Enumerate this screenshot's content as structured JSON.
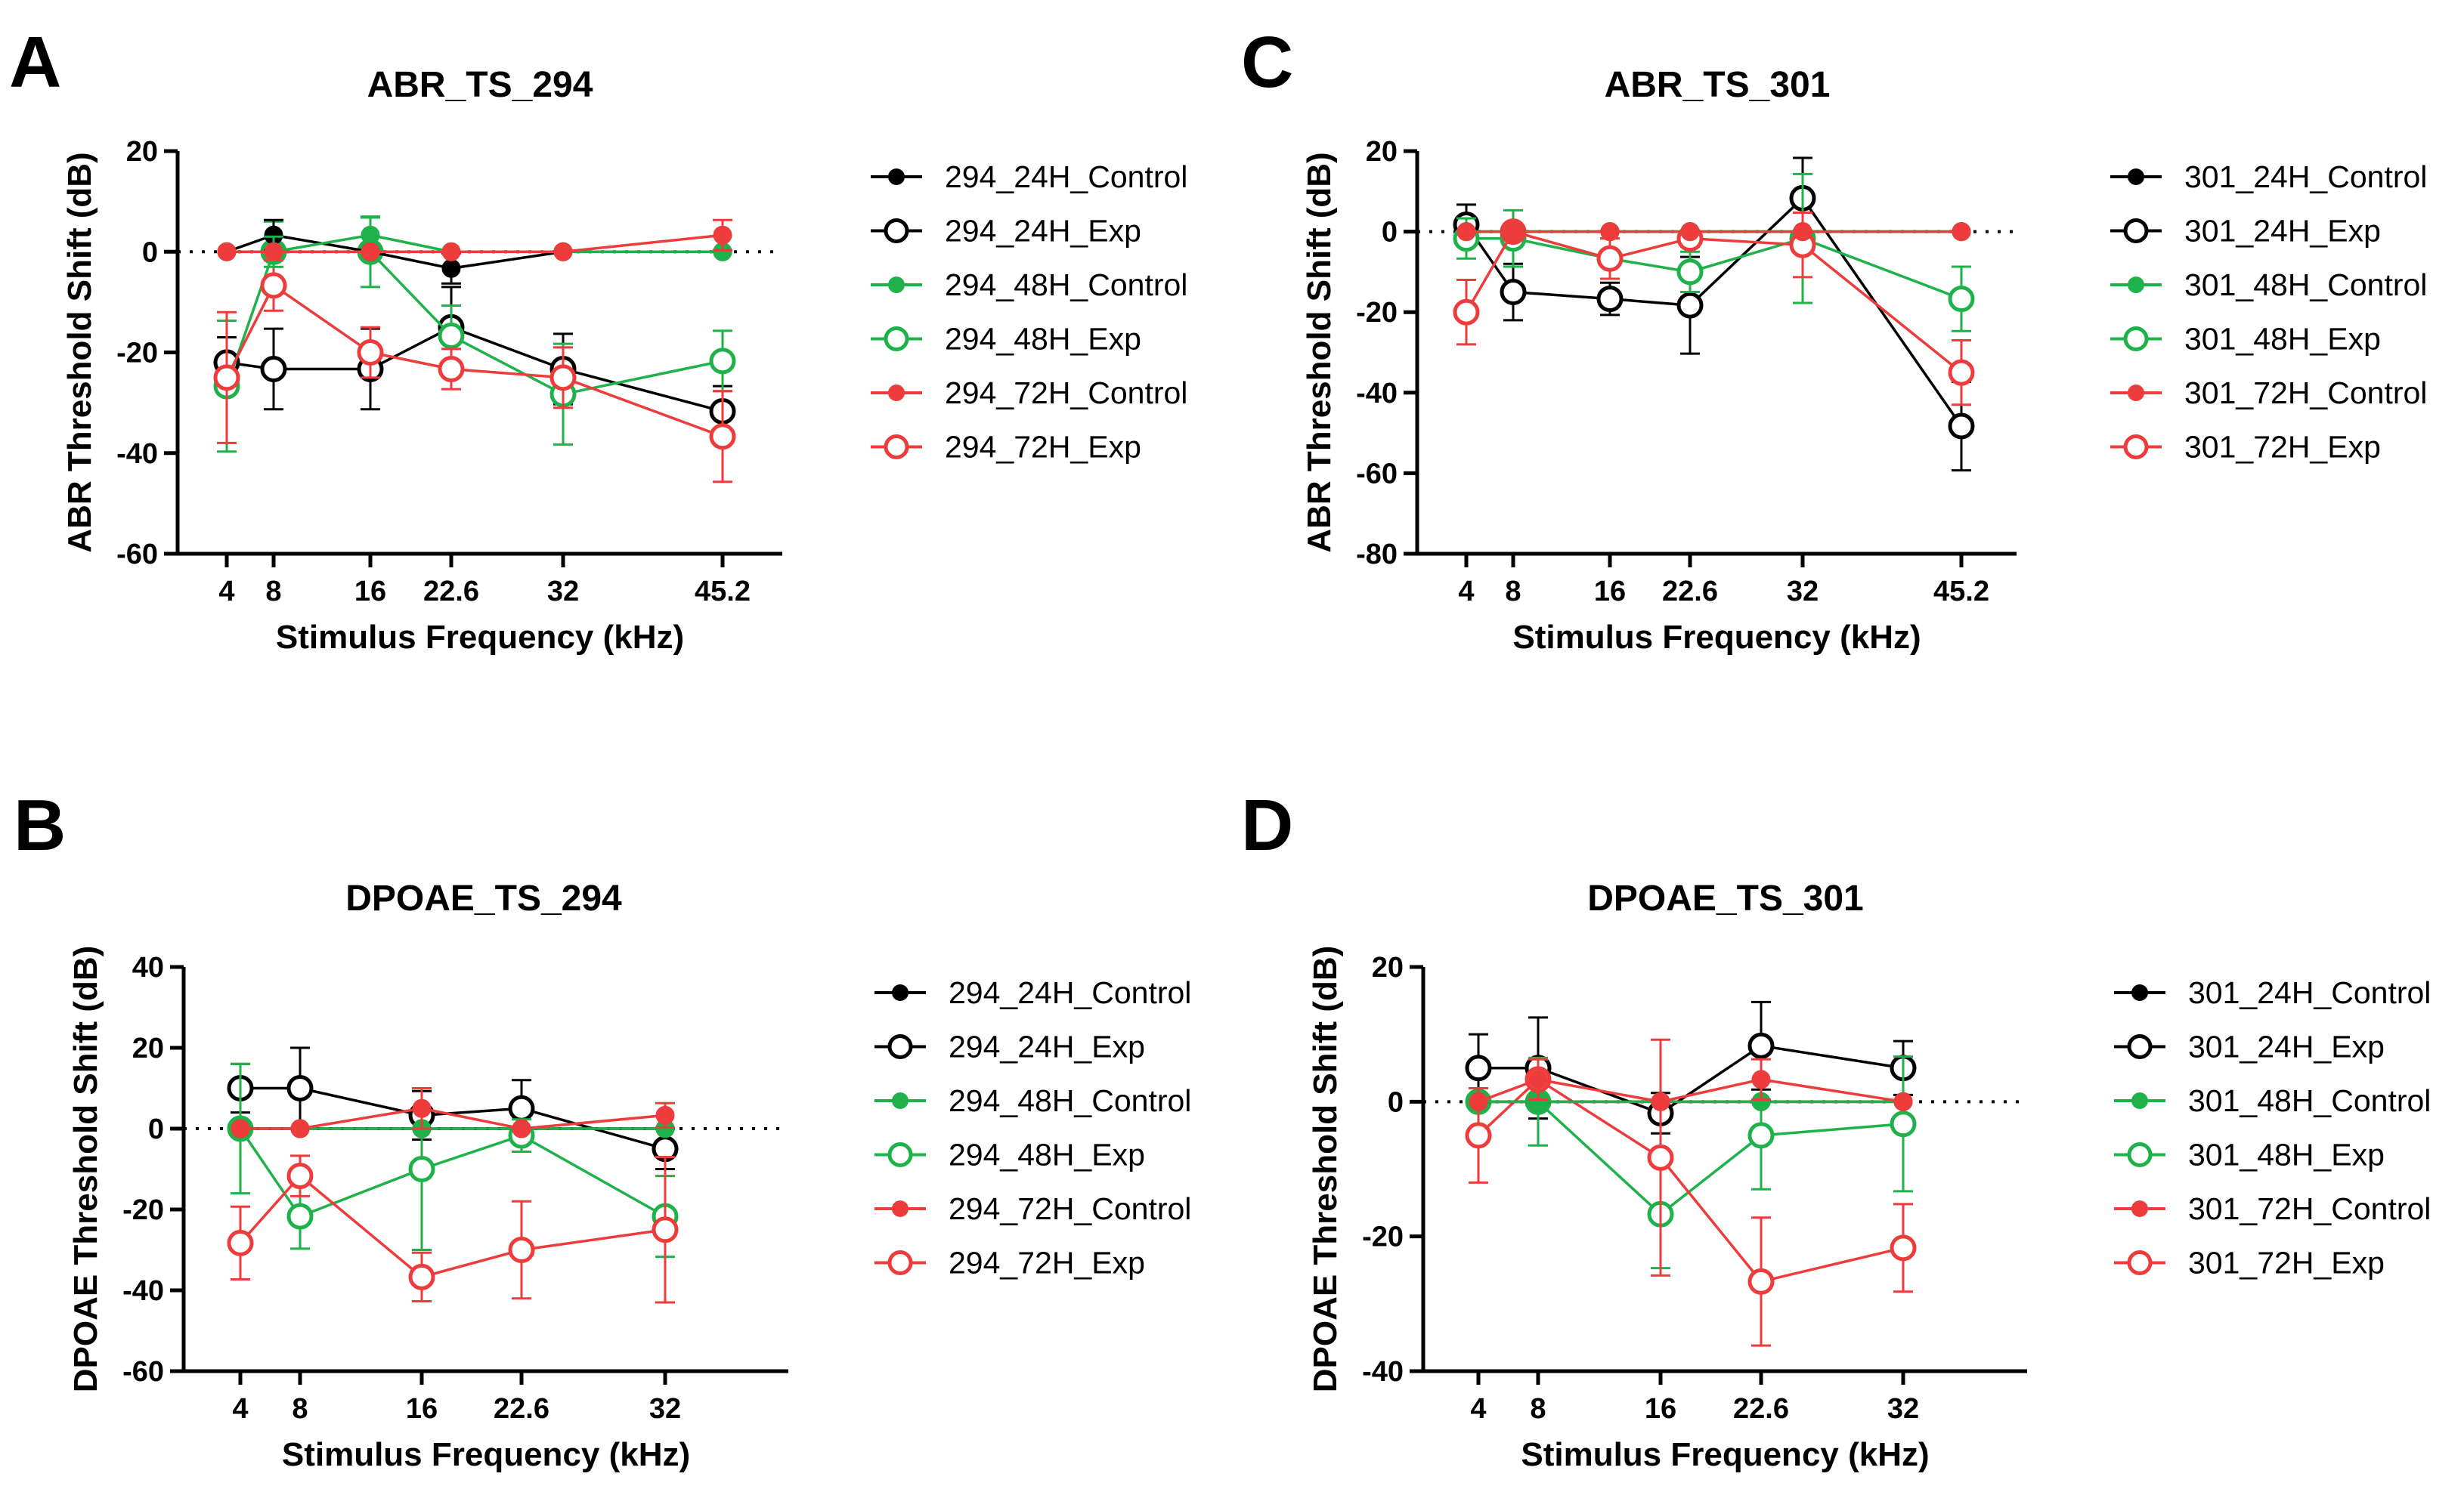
{
  "colors": {
    "24H": "#000000",
    "48H": "#1fb24a",
    "72H": "#ee3b3b"
  },
  "chart_data": [
    {
      "panel": "A",
      "type": "line",
      "title": "ABR_TS_294",
      "xlabel": "Stimulus Frequency (kHz)",
      "ylabel": "ABR Threshold Shift (dB)",
      "x": [
        4,
        8,
        16,
        22.6,
        32,
        45.2
      ],
      "x_tick_labels": [
        "4",
        "8",
        "16",
        "22.6",
        "32",
        "45.2"
      ],
      "ylim": [
        -60,
        20
      ],
      "yticks": [
        20,
        0,
        -20,
        -40,
        -60
      ],
      "series": [
        {
          "name": "294_24H_Control",
          "color_key": "24H",
          "filled": true,
          "y": [
            0,
            3.3,
            0,
            -3.3,
            0,
            0
          ],
          "err": [
            0,
            3,
            0,
            3,
            0,
            0
          ]
        },
        {
          "name": "294_24H_Exp",
          "color_key": "24H",
          "filled": false,
          "y": [
            -22,
            -23.3,
            -23.3,
            -15,
            -23.3,
            -31.7
          ],
          "err": [
            5,
            8,
            8,
            8,
            7,
            5
          ]
        },
        {
          "name": "294_48H_Control",
          "color_key": "48H",
          "filled": true,
          "y": [
            0,
            0,
            3.3,
            0,
            0,
            0
          ],
          "err": [
            0,
            3,
            3.5,
            0,
            0,
            0
          ]
        },
        {
          "name": "294_48H_Exp",
          "color_key": "48H",
          "filled": false,
          "y": [
            -26.7,
            0,
            0,
            -16.7,
            -28.3,
            -21.7
          ],
          "err": [
            13,
            6,
            7,
            6,
            10,
            6
          ]
        },
        {
          "name": "294_72H_Control",
          "color_key": "72H",
          "filled": true,
          "y": [
            0,
            0,
            0,
            0,
            0,
            3.3
          ],
          "err": [
            0,
            0,
            0,
            0,
            0,
            3
          ]
        },
        {
          "name": "294_72H_Exp",
          "color_key": "72H",
          "filled": false,
          "y": [
            -25,
            -6.7,
            -20,
            -23.3,
            -25,
            -36.7
          ],
          "err": [
            13,
            5,
            5,
            4,
            6,
            9
          ]
        }
      ]
    },
    {
      "panel": "C",
      "type": "line",
      "title": "ABR_TS_301",
      "xlabel": "Stimulus Frequency (kHz)",
      "ylabel": "ABR Threshold Shift (dB)",
      "x": [
        4,
        8,
        16,
        22.6,
        32,
        45.2
      ],
      "x_tick_labels": [
        "4",
        "8",
        "16",
        "22.6",
        "32",
        "45.2"
      ],
      "ylim": [
        -80,
        20
      ],
      "yticks": [
        20,
        0,
        -20,
        -40,
        -60,
        -80
      ],
      "series": [
        {
          "name": "301_24H_Control",
          "color_key": "24H",
          "filled": true,
          "y": [
            0,
            0,
            0,
            0,
            0,
            0
          ],
          "err": [
            0,
            0,
            0,
            0,
            0,
            0
          ]
        },
        {
          "name": "301_24H_Exp",
          "color_key": "24H",
          "filled": false,
          "y": [
            1.7,
            -15,
            -16.7,
            -18.3,
            8.3,
            -48.3
          ],
          "err": [
            5,
            7,
            4,
            12,
            10,
            11
          ]
        },
        {
          "name": "301_48H_Control",
          "color_key": "48H",
          "filled": true,
          "y": [
            0,
            0,
            0,
            0,
            0,
            0
          ],
          "err": [
            0,
            0,
            0,
            0,
            0,
            0
          ]
        },
        {
          "name": "301_48H_Exp",
          "color_key": "48H",
          "filled": false,
          "y": [
            -1.7,
            -1.7,
            -6.7,
            -10,
            -1.7,
            -16.7
          ],
          "err": [
            5,
            7,
            5,
            5,
            16,
            8
          ]
        },
        {
          "name": "301_72H_Control",
          "color_key": "72H",
          "filled": true,
          "y": [
            0,
            0,
            0,
            0,
            0,
            0
          ],
          "err": [
            0,
            0,
            0,
            0,
            0,
            0
          ]
        },
        {
          "name": "301_72H_Exp",
          "color_key": "72H",
          "filled": false,
          "y": [
            -20,
            0,
            -6.7,
            -1.7,
            -3.3,
            -35
          ],
          "err": [
            8,
            2,
            5,
            2,
            8,
            8
          ]
        }
      ]
    },
    {
      "panel": "B",
      "type": "line",
      "title": "DPOAE_TS_294",
      "xlabel": "Stimulus Frequency (kHz)",
      "ylabel": "DPOAE Threshold Shift (dB)",
      "x": [
        4,
        8,
        16,
        22.6,
        32
      ],
      "x_tick_labels": [
        "4",
        "8",
        "16",
        "22.6",
        "32"
      ],
      "ylim": [
        -60,
        40
      ],
      "yticks": [
        40,
        20,
        0,
        -20,
        -40,
        -60
      ],
      "series": [
        {
          "name": "294_24H_Control",
          "color_key": "24H",
          "filled": true,
          "y": [
            0,
            0,
            0,
            0,
            0
          ],
          "err": [
            0,
            0,
            0,
            0,
            0
          ]
        },
        {
          "name": "294_24H_Exp",
          "color_key": "24H",
          "filled": false,
          "y": [
            10,
            10,
            3.3,
            5,
            -5
          ],
          "err": [
            6,
            10,
            6,
            7,
            5
          ]
        },
        {
          "name": "294_48H_Control",
          "color_key": "48H",
          "filled": true,
          "y": [
            0,
            0,
            0,
            0,
            0
          ],
          "err": [
            0,
            0,
            0,
            0,
            0
          ]
        },
        {
          "name": "294_48H_Exp",
          "color_key": "48H",
          "filled": false,
          "y": [
            0,
            -21.7,
            -10,
            -1.7,
            -21.7
          ],
          "err": [
            16,
            8,
            20,
            4,
            10
          ]
        },
        {
          "name": "294_72H_Control",
          "color_key": "72H",
          "filled": true,
          "y": [
            0,
            0,
            5,
            0,
            3.3
          ],
          "err": [
            0,
            0,
            5,
            0,
            3
          ]
        },
        {
          "name": "294_72H_Exp",
          "color_key": "72H",
          "filled": false,
          "y": [
            -28.3,
            -11.7,
            -36.7,
            -30,
            -25
          ],
          "err": [
            9,
            5,
            6,
            12,
            18
          ]
        }
      ]
    },
    {
      "panel": "D",
      "type": "line",
      "title": "DPOAE_TS_301",
      "xlabel": "Stimulus Frequency (kHz)",
      "ylabel": "DPOAE Threshold Shift (dB)",
      "x": [
        4,
        8,
        16,
        22.6,
        32
      ],
      "x_tick_labels": [
        "4",
        "8",
        "16",
        "22.6",
        "32"
      ],
      "ylim": [
        -40,
        20
      ],
      "yticks": [
        20,
        0,
        -20,
        -40
      ],
      "series": [
        {
          "name": "301_24H_Control",
          "color_key": "24H",
          "filled": true,
          "y": [
            0,
            0,
            0,
            0,
            0
          ],
          "err": [
            0,
            0,
            0,
            0,
            0
          ]
        },
        {
          "name": "301_24H_Exp",
          "color_key": "24H",
          "filled": false,
          "y": [
            5,
            5,
            -1.7,
            8.3,
            5
          ],
          "err": [
            5,
            7.5,
            3,
            6.5,
            4
          ]
        },
        {
          "name": "301_48H_Control",
          "color_key": "48H",
          "filled": true,
          "y": [
            0,
            0,
            0,
            0,
            0
          ],
          "err": [
            0,
            0,
            0,
            0,
            0
          ]
        },
        {
          "name": "301_48H_Exp",
          "color_key": "48H",
          "filled": false,
          "y": [
            0,
            0,
            -16.7,
            -5,
            -3.3
          ],
          "err": [
            0,
            6.5,
            8,
            8,
            10
          ]
        },
        {
          "name": "301_72H_Control",
          "color_key": "72H",
          "filled": true,
          "y": [
            0,
            3.3,
            0,
            3.3,
            0
          ],
          "err": [
            0,
            3,
            0,
            3,
            0
          ]
        },
        {
          "name": "301_72H_Exp",
          "color_key": "72H",
          "filled": false,
          "y": [
            -5,
            3.3,
            -8.3,
            -26.7,
            -21.7
          ],
          "err": [
            7,
            3,
            17.5,
            9.5,
            6.5
          ]
        }
      ]
    }
  ]
}
